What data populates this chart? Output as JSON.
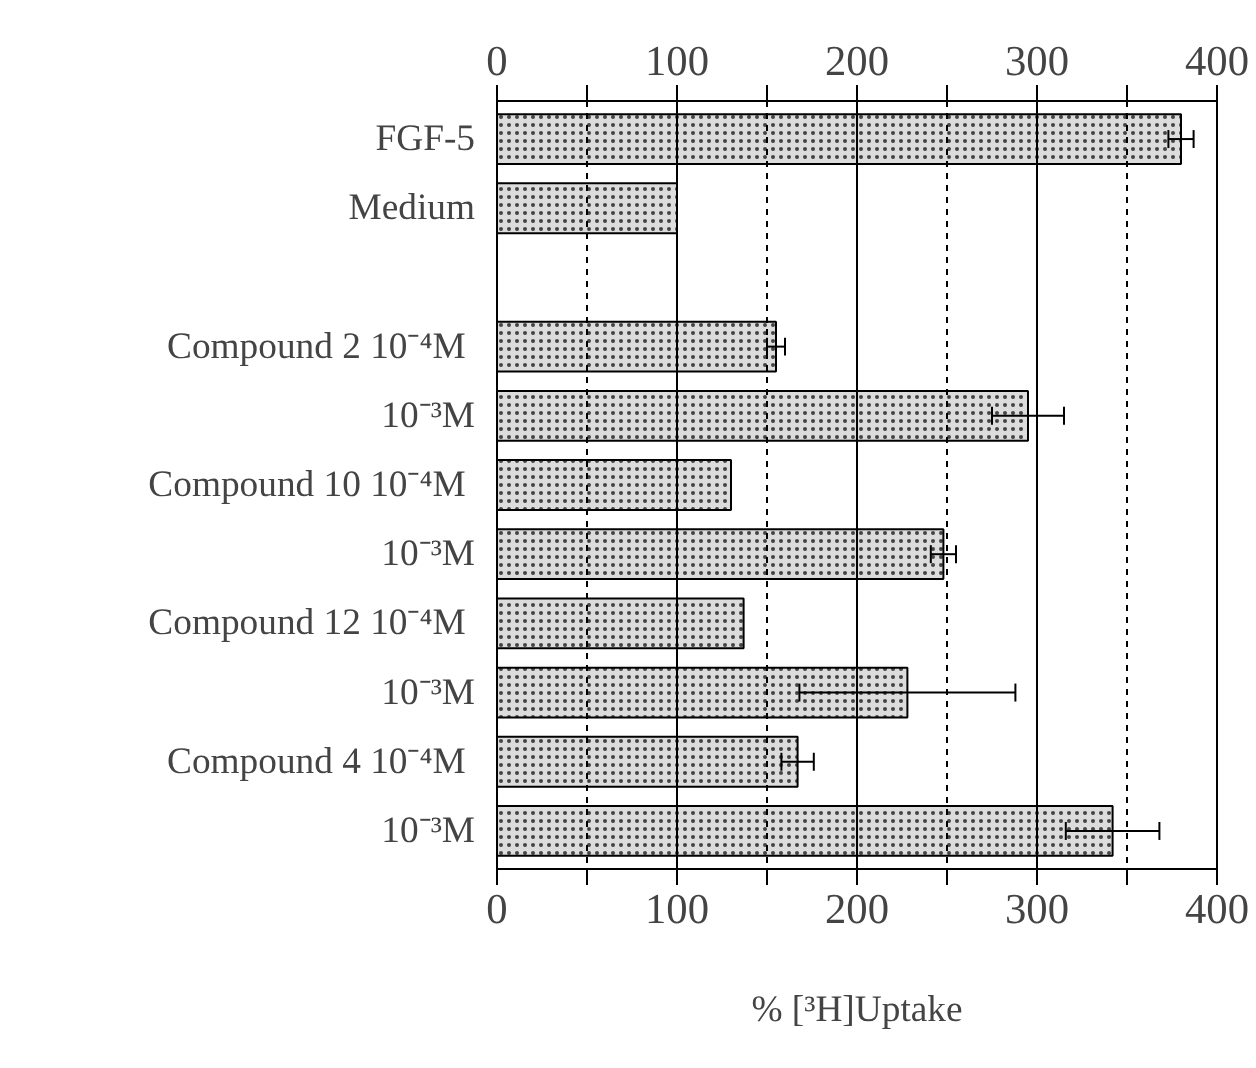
{
  "chart_data": {
    "type": "bar",
    "orientation": "horizontal",
    "xlabel": "% [³H]Uptake",
    "categories": [
      "FGF-5",
      "Medium",
      null,
      "Compound 2  10⁻⁴M",
      "10⁻³M",
      "Compound 10  10⁻⁴M",
      "10⁻³M",
      "Compound 12  10⁻⁴M",
      "10⁻³M",
      "Compound 4  10⁻⁴M",
      "10⁻³M"
    ],
    "values": [
      380,
      100,
      null,
      155,
      295,
      130,
      248,
      137,
      228,
      167,
      342
    ],
    "errors": [
      7,
      null,
      null,
      5,
      20,
      null,
      7,
      null,
      60,
      9,
      26
    ],
    "color": "#dcdcdc",
    "xlim": [
      0,
      400
    ],
    "xticks": [
      0,
      {
        "value": 50,
        "label": null
      },
      100,
      {
        "value": 150,
        "label": null
      },
      200,
      {
        "value": 250,
        "label": null
      },
      300,
      {
        "value": 350,
        "label": null
      },
      400
    ],
    "x2lim": [
      0,
      400
    ],
    "x2ticks": [
      0,
      {
        "value": 50,
        "label": null
      },
      100,
      {
        "value": 150,
        "label": null
      },
      200,
      {
        "value": 250,
        "label": null
      },
      300,
      {
        "value": 350,
        "label": null
      },
      400
    ],
    "grid": "x"
  }
}
